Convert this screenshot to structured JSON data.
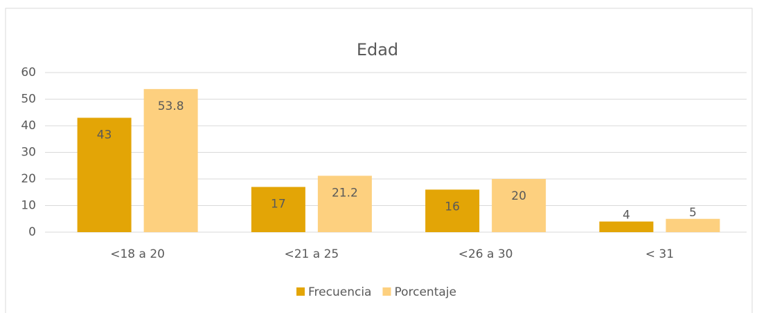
{
  "chart_data": {
    "type": "bar",
    "title": "Edad",
    "categories": [
      "<18 a 20",
      "<21 a 25",
      "<26 a 30",
      "< 31"
    ],
    "series": [
      {
        "name": "Frecuencia",
        "color": "#e3a506",
        "values": [
          43,
          17,
          16,
          4
        ]
      },
      {
        "name": "Porcentaje",
        "color": "#fdd07f",
        "values": [
          53.8,
          21.2,
          20,
          5
        ]
      }
    ],
    "ylim": [
      0,
      60
    ],
    "yticks": [
      0,
      10,
      20,
      30,
      40,
      50,
      60
    ],
    "grid": true,
    "legend": "bottom"
  }
}
